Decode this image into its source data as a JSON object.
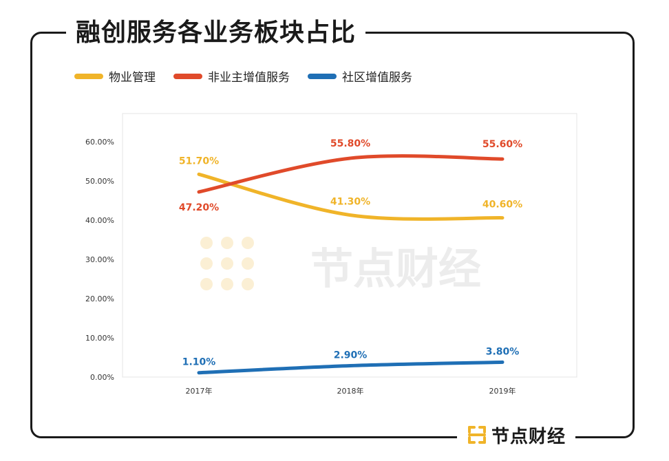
{
  "title": "融创服务各业务板块占比",
  "brand": {
    "name": "节点财经",
    "accent": "#F0B429"
  },
  "watermark": "节点财经",
  "chart_data": {
    "type": "line",
    "title": "融创服务各业务板块占比",
    "categories": [
      "2017年",
      "2018年",
      "2019年"
    ],
    "ylim": [
      0,
      60
    ],
    "yticks": [
      "0.00%",
      "10.00%",
      "20.00%",
      "30.00%",
      "40.00%",
      "50.00%",
      "60.00%"
    ],
    "grid": false,
    "legend_position": "top-left",
    "series": [
      {
        "name": "物业管理",
        "color": "#F0B429",
        "values": [
          51.7,
          41.3,
          40.6
        ],
        "labels": [
          "51.70%",
          "41.30%",
          "40.60%"
        ]
      },
      {
        "name": "非业主增值服务",
        "color": "#E04A2A",
        "values": [
          47.2,
          55.8,
          55.6
        ],
        "labels": [
          "47.20%",
          "55.80%",
          "55.60%"
        ]
      },
      {
        "name": "社区增值服务",
        "color": "#1F6FB5",
        "values": [
          1.1,
          2.9,
          3.8
        ],
        "labels": [
          "1.10%",
          "2.90%",
          "3.80%"
        ]
      }
    ]
  }
}
